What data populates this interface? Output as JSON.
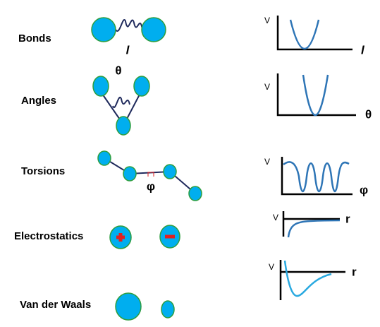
{
  "terms": [
    {
      "label": "Bonds",
      "symbol": "l",
      "plot": {
        "y_label": "V",
        "x_label": "l"
      }
    },
    {
      "label": "Angles",
      "symbol": "θ",
      "plot": {
        "y_label": "V",
        "x_label": "θ"
      }
    },
    {
      "label": "Torsions",
      "symbol": "φ",
      "plot": {
        "y_label": "V",
        "x_label": "φ"
      }
    },
    {
      "label": "Electrostatics",
      "plot": {
        "y_label": "V",
        "x_label": "r"
      }
    },
    {
      "label": "Van der Waals",
      "plot": {
        "y_label": "V",
        "x_label": "r"
      }
    }
  ]
}
